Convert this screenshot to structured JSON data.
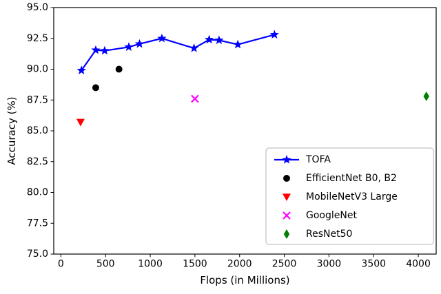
{
  "chart_data": {
    "type": "line",
    "title": "",
    "xlabel": "Flops (in Millions)",
    "ylabel": "Accuracy (%)",
    "xlim": [
      -80,
      4200
    ],
    "ylim": [
      75,
      95
    ],
    "xticks": [
      0,
      500,
      1000,
      1500,
      2000,
      2500,
      3000,
      3500,
      4000
    ],
    "yticks": [
      75.0,
      77.5,
      80.0,
      82.5,
      85.0,
      87.5,
      90.0,
      92.5,
      95.0
    ],
    "grid": false,
    "legend_position": "lower right",
    "series": [
      {
        "name": "TOFA",
        "kind": "line",
        "marker": "star",
        "color": "#0000ff",
        "points": [
          [
            230,
            89.9
          ],
          [
            390,
            91.55
          ],
          [
            490,
            91.5
          ],
          [
            760,
            91.8
          ],
          [
            880,
            92.05
          ],
          [
            1130,
            92.5
          ],
          [
            1490,
            91.7
          ],
          [
            1660,
            92.4
          ],
          [
            1770,
            92.35
          ],
          [
            1980,
            92.0
          ],
          [
            2390,
            92.8
          ]
        ]
      },
      {
        "name": "EfficientNet B0, B2",
        "kind": "scatter",
        "marker": "circle",
        "color": "#000000",
        "points": [
          [
            390,
            88.5
          ],
          [
            650,
            90.0
          ]
        ]
      },
      {
        "name": "MobileNetV3 Large",
        "kind": "scatter",
        "marker": "triangle-down",
        "color": "#ff0000",
        "points": [
          [
            220,
            85.7
          ]
        ]
      },
      {
        "name": "GoogleNet",
        "kind": "scatter",
        "marker": "x",
        "color": "#ff00ff",
        "points": [
          [
            1500,
            87.6
          ]
        ]
      },
      {
        "name": "ResNet50",
        "kind": "scatter",
        "marker": "thin-diamond",
        "color": "#008000",
        "points": [
          [
            4090,
            87.8
          ]
        ]
      }
    ]
  }
}
